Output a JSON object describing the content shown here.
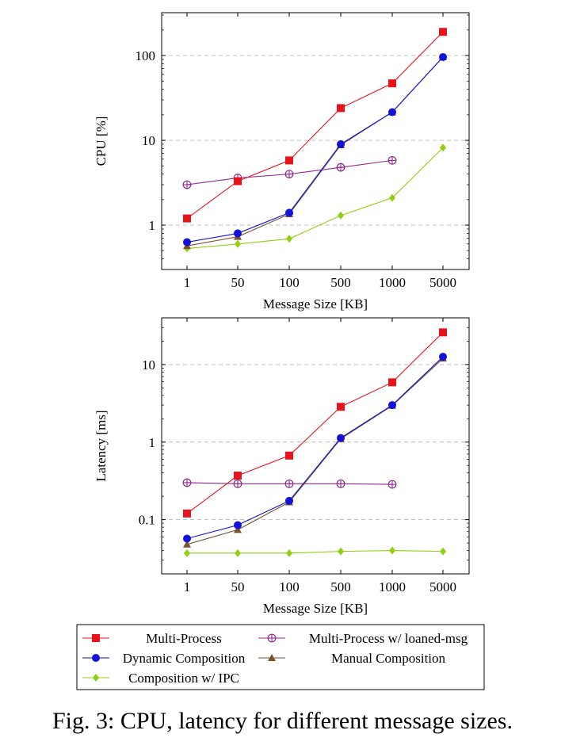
{
  "caption": "Fig. 3: CPU, latency for different message sizes.",
  "chart_data": [
    {
      "type": "line",
      "yscale": "log",
      "xlabel": "Message Size [KB]",
      "ylabel": "CPU [%]",
      "categories": [
        "1",
        "50",
        "100",
        "500",
        "1000",
        "5000"
      ],
      "ylim": [
        0.3,
        320
      ],
      "yticks": [
        1,
        10,
        100
      ],
      "yticklabels": [
        "1",
        "10",
        "100"
      ],
      "grid": "horizontal dashed",
      "series": [
        {
          "name": "Multi-Process",
          "values": [
            1.2,
            3.3,
            5.8,
            24,
            47,
            190
          ]
        },
        {
          "name": "Multi-Process w/ loaned-msg",
          "values": [
            3.0,
            3.6,
            4.0,
            4.8,
            5.8,
            null
          ]
        },
        {
          "name": "Dynamic Composition",
          "values": [
            0.63,
            0.8,
            1.4,
            9.0,
            21.5,
            96
          ]
        },
        {
          "name": "Manual Composition",
          "values": [
            0.57,
            0.73,
            1.35,
            8.8,
            21.5,
            96
          ]
        },
        {
          "name": "Composition w/ IPC",
          "values": [
            0.53,
            0.6,
            0.69,
            1.3,
            2.1,
            8.2
          ]
        }
      ]
    },
    {
      "type": "line",
      "yscale": "log",
      "xlabel": "Message Size [KB]",
      "ylabel": "Latency [ms]",
      "categories": [
        "1",
        "50",
        "100",
        "500",
        "1000",
        "5000"
      ],
      "ylim": [
        0.02,
        40
      ],
      "yticks": [
        0.1,
        1,
        10
      ],
      "yticklabels": [
        "0.1",
        "1",
        "10"
      ],
      "grid": "horizontal dashed",
      "series": [
        {
          "name": "Multi-Process",
          "values": [
            0.12,
            0.37,
            0.67,
            2.85,
            5.9,
            26
          ]
        },
        {
          "name": "Multi-Process w/ loaned-msg",
          "values": [
            0.3,
            0.29,
            0.29,
            0.29,
            0.285,
            null
          ]
        },
        {
          "name": "Dynamic Composition",
          "values": [
            0.057,
            0.085,
            0.175,
            1.13,
            3.0,
            12.6
          ]
        },
        {
          "name": "Manual Composition",
          "values": [
            0.048,
            0.074,
            0.168,
            1.1,
            2.95,
            12.0
          ]
        },
        {
          "name": "Composition w/ IPC",
          "values": [
            0.037,
            0.037,
            0.037,
            0.039,
            0.04,
            0.039
          ]
        }
      ]
    }
  ],
  "legend": {
    "placement": "bottom",
    "entries": [
      {
        "label": "Multi-Process",
        "color": "#e8141c",
        "marker": "square"
      },
      {
        "label": "Multi-Process w/ loaned-msg",
        "color": "#8e2a8c",
        "marker": "circle-plus"
      },
      {
        "label": "Dynamic Composition",
        "color": "#1212d8",
        "marker": "circle"
      },
      {
        "label": "Manual Composition",
        "color": "#7a5230",
        "marker": "triangle"
      },
      {
        "label": "Composition w/ IPC",
        "color": "#90d010",
        "marker": "diamond"
      }
    ]
  }
}
